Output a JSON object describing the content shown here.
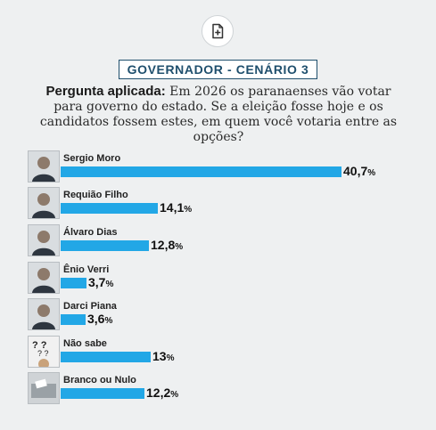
{
  "title": "GOVERNADOR - CENÁRIO 3",
  "question_label": "Pergunta aplicada:",
  "question_text": "Em 2026 os paranaenses vão votar para governo do estado. Se a eleição fosse hoje e os candidatos fossem estes, em quem você votaria entre as opções?",
  "chart_data": {
    "type": "bar",
    "categories": [
      "Sergio Moro",
      "Requião Filho",
      "Álvaro Dias",
      "Ênio Verri",
      "Darci Piana",
      "Não sabe",
      "Branco ou Nulo"
    ],
    "values": [
      40.7,
      14.1,
      12.8,
      3.7,
      3.6,
      13,
      12.2
    ],
    "value_labels": [
      "40,7",
      "14,1",
      "12,8",
      "3,7",
      "3,6",
      "13",
      "12,2"
    ],
    "unit": "%",
    "bar_color": "#22a7e6"
  },
  "icons": [
    "add-document-icon"
  ],
  "colors": {
    "background": "#eef0f1",
    "title": "#1f4f6d",
    "bar": "#22a7e6"
  }
}
